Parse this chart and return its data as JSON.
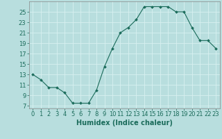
{
  "x": [
    0,
    1,
    2,
    3,
    4,
    5,
    6,
    7,
    8,
    9,
    10,
    11,
    12,
    13,
    14,
    15,
    16,
    17,
    18,
    19,
    20,
    21,
    22,
    23
  ],
  "y": [
    13,
    12,
    10.5,
    10.5,
    9.5,
    7.5,
    7.5,
    7.5,
    10,
    14.5,
    18,
    21,
    22,
    23.5,
    26,
    26,
    26,
    26,
    25,
    25,
    22,
    19.5,
    19.5,
    18
  ],
  "line_color": "#1a6b5a",
  "marker_color": "#1a6b5a",
  "bg_color": "#b8dede",
  "grid_color": "#d8f0f0",
  "xlabel": "Humidex (Indice chaleur)",
  "xlabel_fontsize": 7,
  "tick_fontsize": 6,
  "ylim": [
    6.5,
    27
  ],
  "yticks": [
    7,
    9,
    11,
    13,
    15,
    17,
    19,
    21,
    23,
    25
  ],
  "xticks": [
    0,
    1,
    2,
    3,
    4,
    5,
    6,
    7,
    8,
    9,
    10,
    11,
    12,
    13,
    14,
    15,
    16,
    17,
    18,
    19,
    20,
    21,
    22,
    23
  ]
}
